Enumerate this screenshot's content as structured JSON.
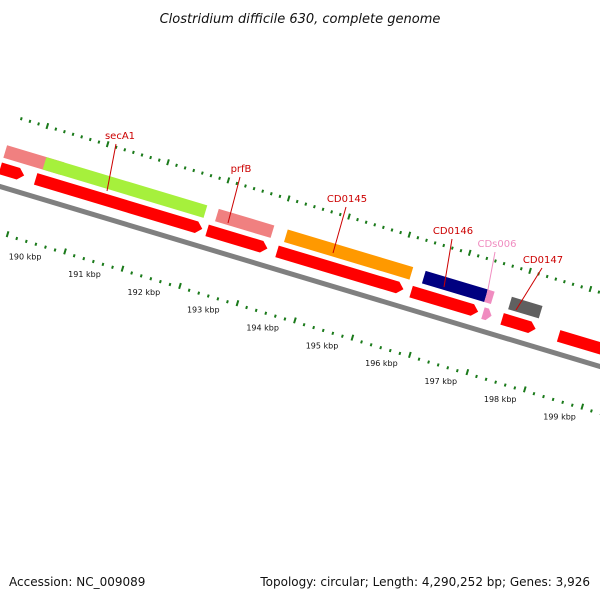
{
  "map": {
    "title": "Clostridium difficile 630, complete genome",
    "accession": "Accession: NC_009089",
    "summary": "Topology: circular; Length: 4,290,252 bp; Genes: 3,926"
  },
  "colors": {
    "backbone": "#808080",
    "cds_forward": "#ff0000",
    "gc_tick": "#1a7a1a",
    "label_red": "#cc0000",
    "label_pink": "#f08cc0"
  },
  "genes": [
    {
      "name": "",
      "color": "#f08080"
    },
    {
      "name": "secA1",
      "color": "#a6f03c"
    },
    {
      "name": "prfB",
      "color": "#f08080"
    },
    {
      "name": "CD0145",
      "color": "#ff9900"
    },
    {
      "name": "CD0146",
      "color": "#000080"
    },
    {
      "name": "CDs006",
      "color": "#f08cc0"
    },
    {
      "name": "CD0147",
      "color": "#606060"
    }
  ],
  "scale_labels": [
    "190 kbp",
    "191 kbp",
    "192 kbp",
    "193 kbp",
    "194 kbp",
    "195 kbp",
    "196 kbp",
    "197 kbp",
    "198 kbp",
    "199 kbp"
  ]
}
